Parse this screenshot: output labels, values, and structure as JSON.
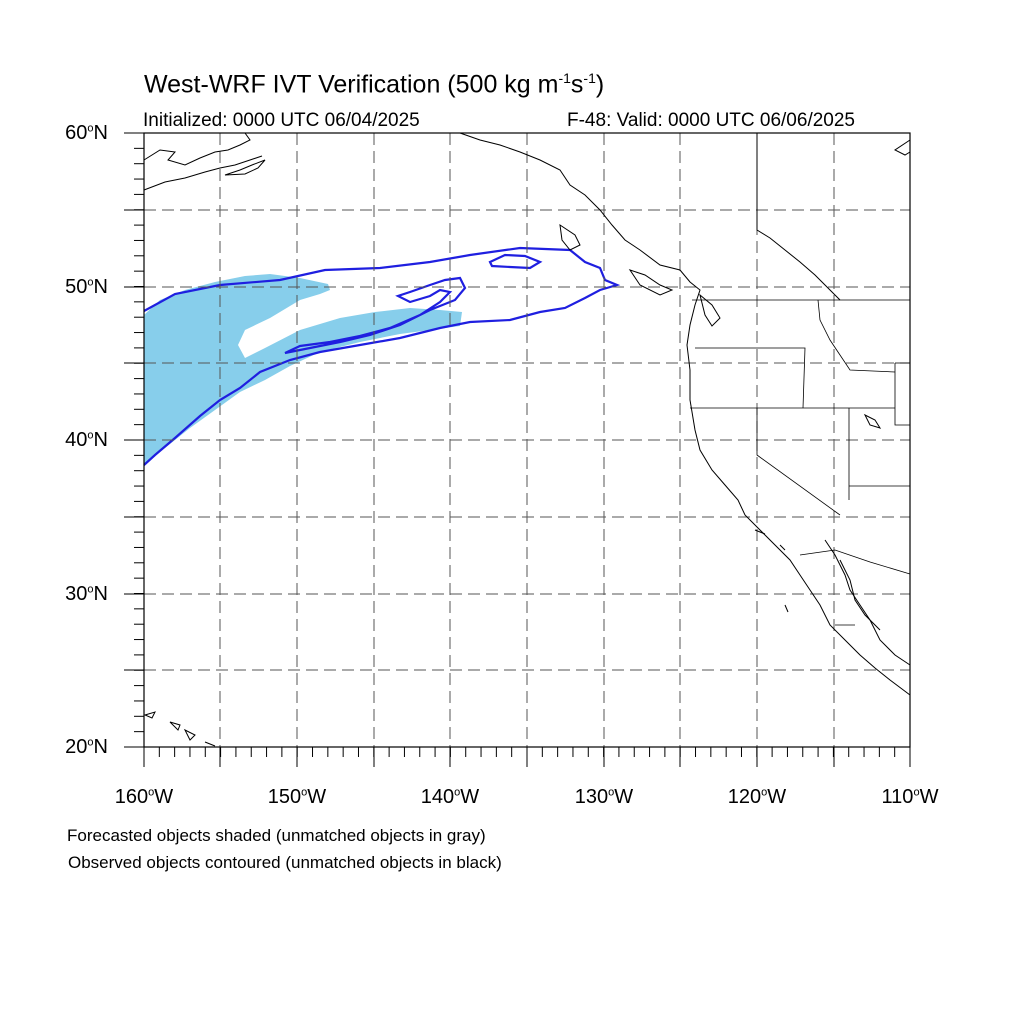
{
  "title": {
    "prefix": "West-WRF IVT Verification (500 kg m",
    "m_exp": "-1",
    "mid": "s",
    "s_exp": "-1",
    "suffix": ")"
  },
  "initialized": "Initialized: 0000 UTC 06/04/2025",
  "valid": "F-48: Valid: 0000 UTC 06/06/2025",
  "lat_labels": [
    {
      "value": "60",
      "hemi": "N"
    },
    {
      "value": "50",
      "hemi": "N"
    },
    {
      "value": "40",
      "hemi": "N"
    },
    {
      "value": "30",
      "hemi": "N"
    },
    {
      "value": "20",
      "hemi": "N"
    }
  ],
  "lon_labels": [
    {
      "value": "160",
      "hemi": "W"
    },
    {
      "value": "150",
      "hemi": "W"
    },
    {
      "value": "140",
      "hemi": "W"
    },
    {
      "value": "130",
      "hemi": "W"
    },
    {
      "value": "120",
      "hemi": "W"
    },
    {
      "value": "110",
      "hemi": "W"
    }
  ],
  "degree_symbol": "o",
  "legend": {
    "forecast": "Forecasted objects shaded (unmatched objects in gray)",
    "observed": "Observed objects contoured (unmatched objects in black)"
  },
  "colors": {
    "forecast_fill": "#87ceeb",
    "observed_contour": "#1f1fe0",
    "coast": "#000000"
  }
}
